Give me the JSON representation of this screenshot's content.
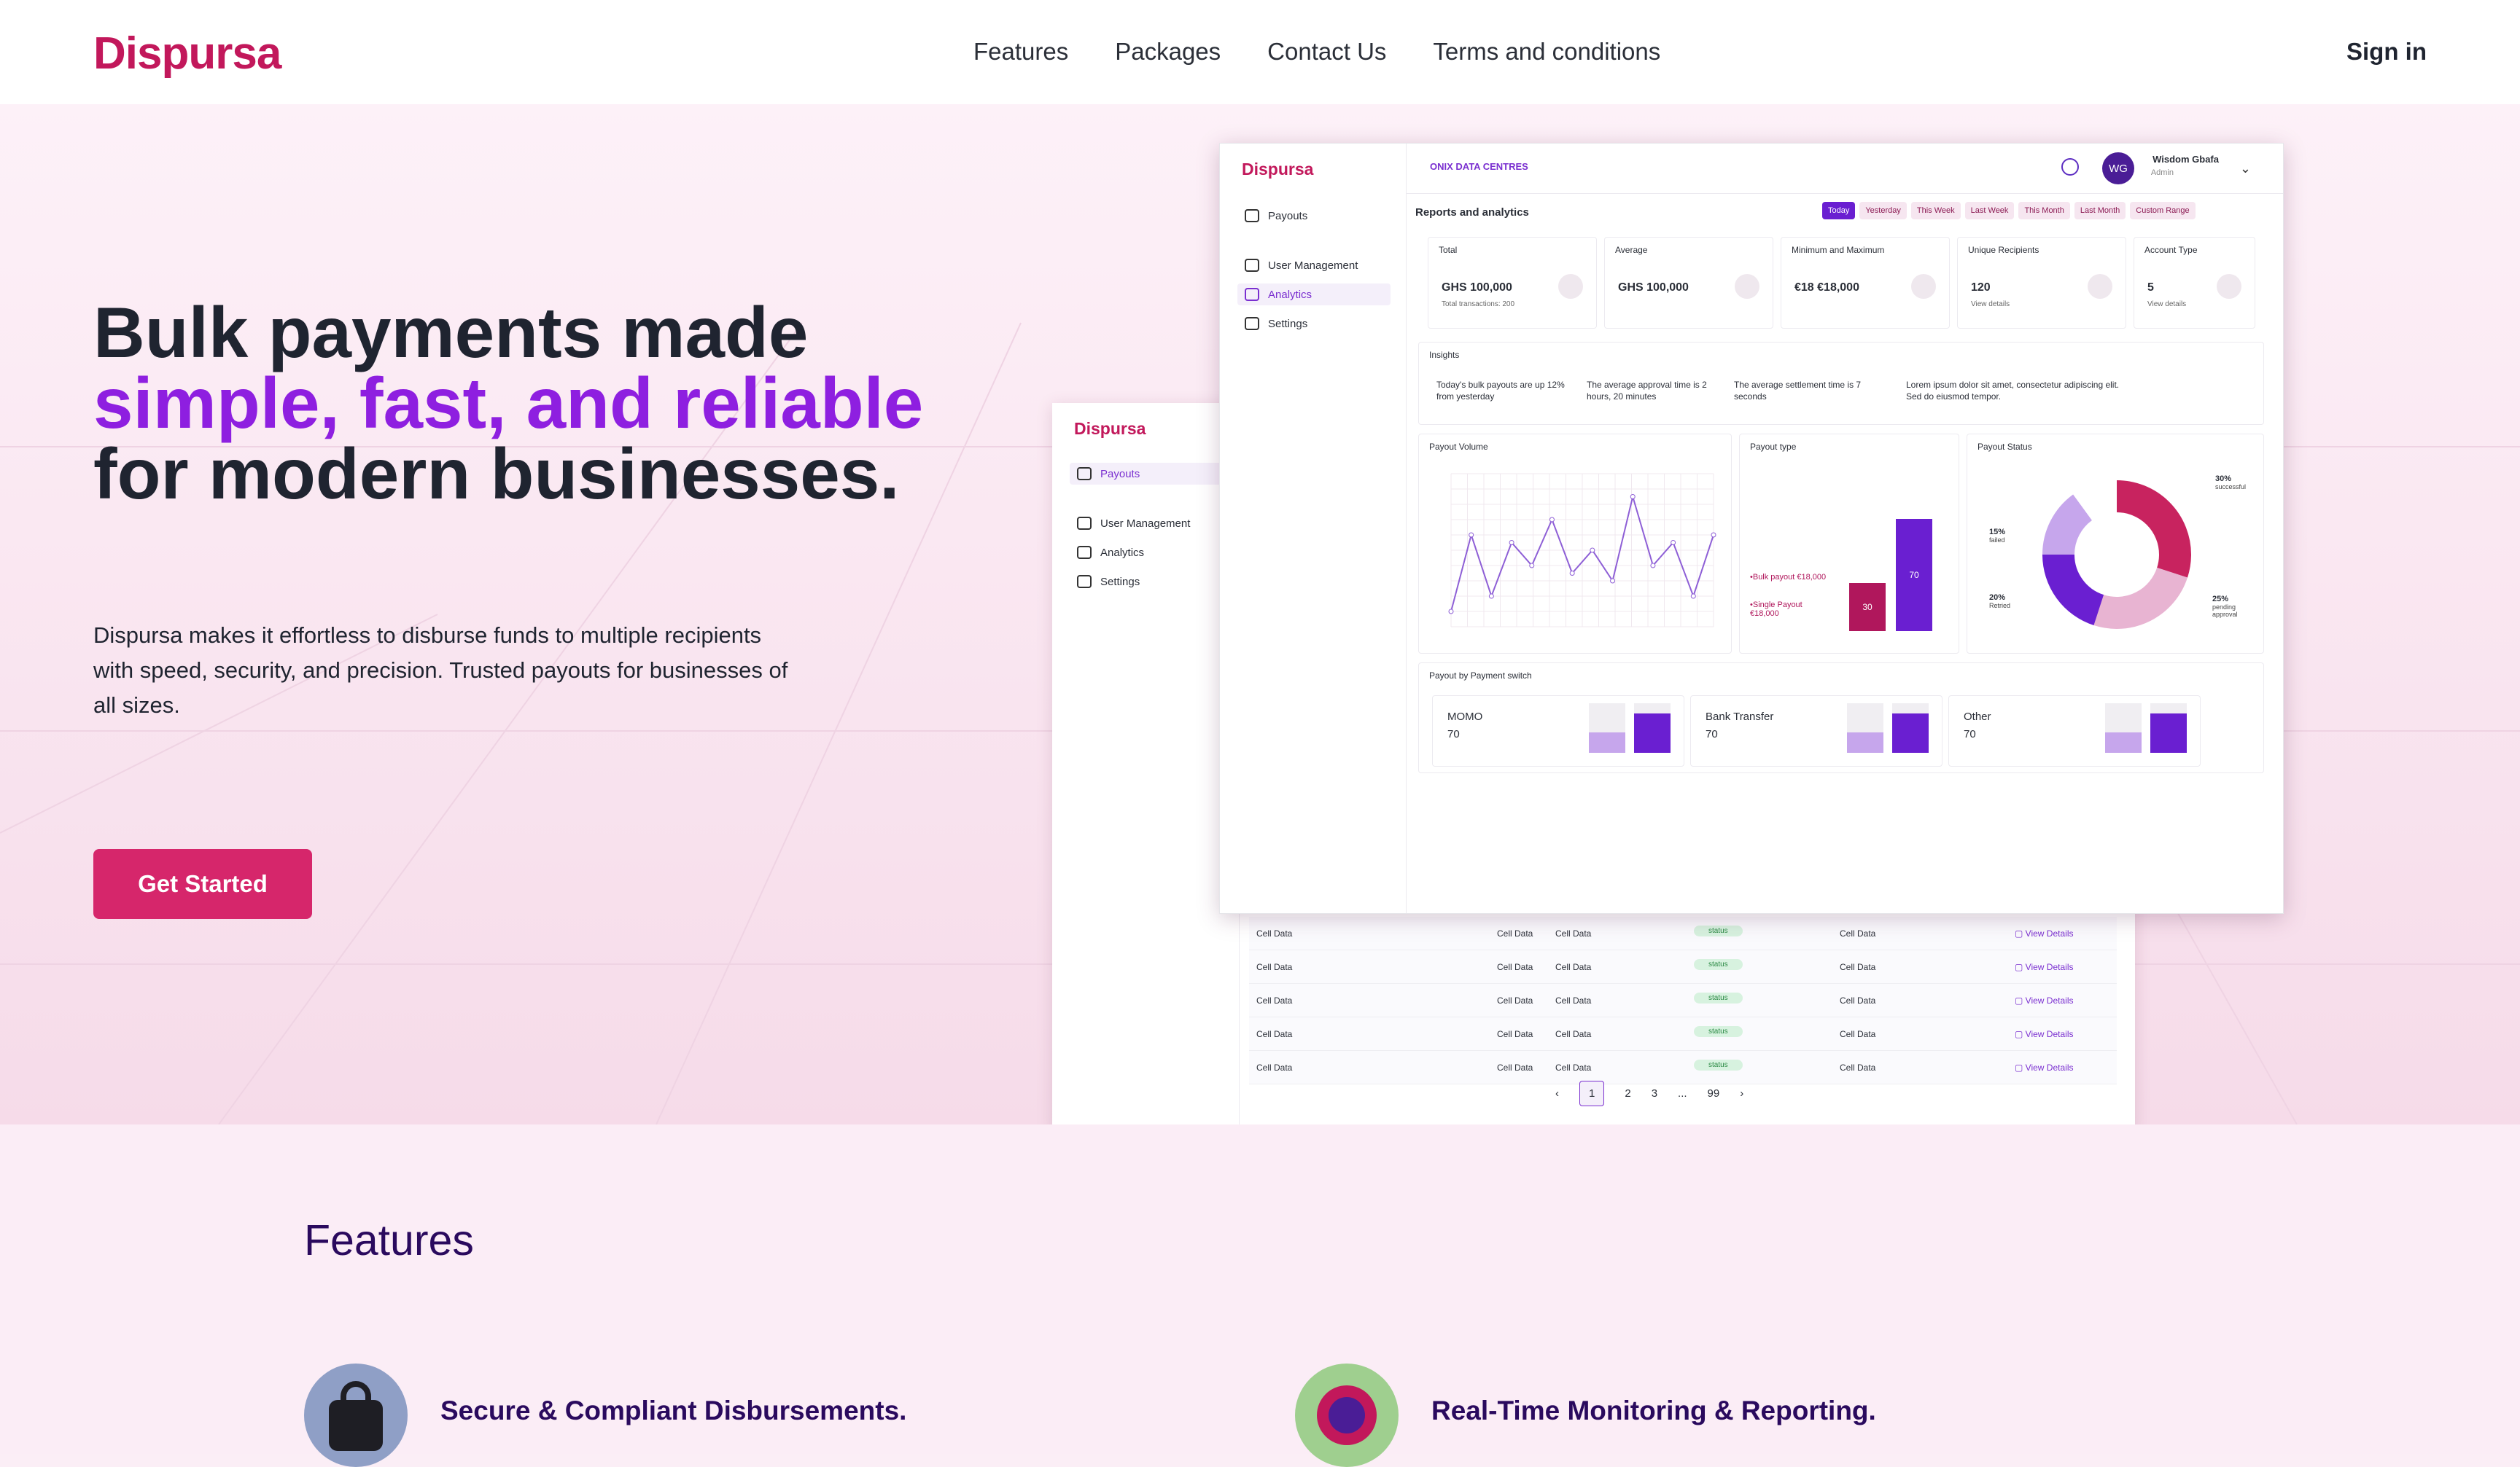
{
  "header": {
    "logo": "Dispursa",
    "nav": [
      "Features",
      "Packages",
      "Contact Us",
      "Terms and conditions"
    ],
    "signin": "Sign in"
  },
  "hero": {
    "title_part1": "Bulk payments made ",
    "title_highlight": "simple, fast, and reliable",
    "title_part2": " for modern businesses.",
    "description": "Dispursa makes it effortless to disburse funds to multiple recipients with speed, security, and precision. Trusted payouts for businesses of all sizes.",
    "cta": "Get Started"
  },
  "dashboard": {
    "logo": "Dispursa",
    "org": "ONIX DATA CENTRES",
    "user": {
      "initials": "WG",
      "name": "Wisdom Gbafa",
      "role": "Admin"
    },
    "sidebar": [
      "Payouts",
      "User Management",
      "Analytics",
      "Settings"
    ],
    "section_title": "Reports and analytics",
    "filters": [
      "Today",
      "Yesterday",
      "This Week",
      "Last Week",
      "This Month",
      "Last Month",
      "Custom Range"
    ],
    "cards": [
      {
        "title": "Total",
        "value": "GHS 100,000",
        "sub": "Total transactions: 200"
      },
      {
        "title": "Average",
        "value": "GHS 100,000",
        "sub": ""
      },
      {
        "title": "Minimum and Maximum",
        "value": "€18   €18,000",
        "sub": ""
      },
      {
        "title": "Unique Recipients",
        "value": "120",
        "sub": "View details"
      },
      {
        "title": "Account Type",
        "value": "5",
        "sub": "View details"
      }
    ],
    "insights_title": "Insights",
    "insights": [
      "Today's bulk payouts are up 12% from yesterday",
      "The average approval time is 2 hours, 20 minutes",
      "The average settlement time is 7 seconds",
      "Lorem ipsum dolor sit amet, consectetur adipiscing elit. Sed do eiusmod tempor."
    ],
    "volume_title": "Payout Volume",
    "type_title": "Payout type",
    "type_legend": [
      "•Bulk payout €18,000",
      "•Single Payout €18,000"
    ],
    "type_bars": [
      30,
      70
    ],
    "status_title": "Payout Status",
    "status_labels": [
      {
        "pct": "30%",
        "label": "successful"
      },
      {
        "pct": "15%",
        "label": "failed"
      },
      {
        "pct": "20%",
        "label": "Retried"
      },
      {
        "pct": "25%",
        "label": "pending approval"
      }
    ],
    "switch_title": "Payout by Payment switch",
    "switches": [
      {
        "name": "MOMO",
        "value": "70"
      },
      {
        "name": "Bank Transfer",
        "value": "70"
      },
      {
        "name": "Other",
        "value": "70"
      }
    ],
    "table_cell": "Cell Data",
    "table_status": "status",
    "table_link": "View Details",
    "pages": [
      "1",
      "2",
      "3",
      "...",
      "99"
    ]
  },
  "volume_chart": {
    "type": "line",
    "values": [
      10,
      60,
      20,
      55,
      40,
      70,
      35,
      50,
      30,
      85,
      40,
      55,
      20,
      60
    ]
  },
  "features": {
    "heading": "Features",
    "items": [
      "Secure & Compliant Disbursements.",
      "Real-Time Monitoring & Reporting."
    ]
  },
  "colors": {
    "brand": "#c2185b",
    "accent": "#8e1fe0",
    "cta": "#d6266b",
    "deep": "#2a0a5e"
  }
}
